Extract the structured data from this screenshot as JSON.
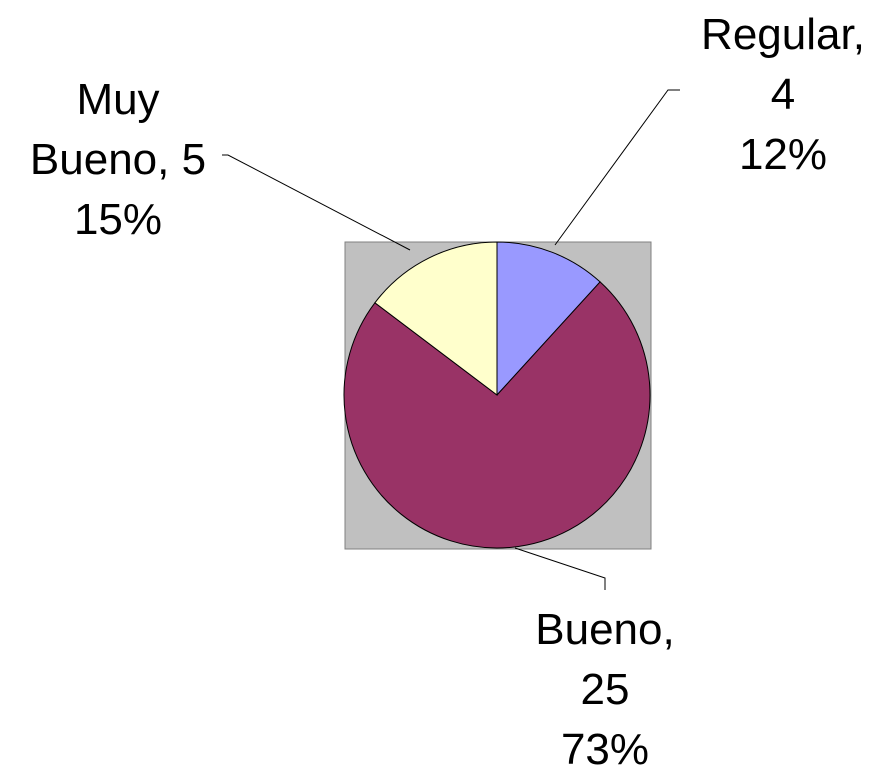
{
  "chart_data": {
    "type": "pie",
    "series": [
      {
        "values": [
          4,
          25,
          5
        ],
        "value_labels": [
          "Regular, 4",
          "Bueno, 25",
          "Muy Bueno, 5"
        ],
        "percents": [
          12,
          73,
          15
        ],
        "percent_labels": [
          "12%",
          "73%",
          "15%"
        ],
        "colors": [
          "#9999ff",
          "#993366",
          "#ffffcc"
        ]
      }
    ],
    "plot_background": "#c0c0c0"
  }
}
